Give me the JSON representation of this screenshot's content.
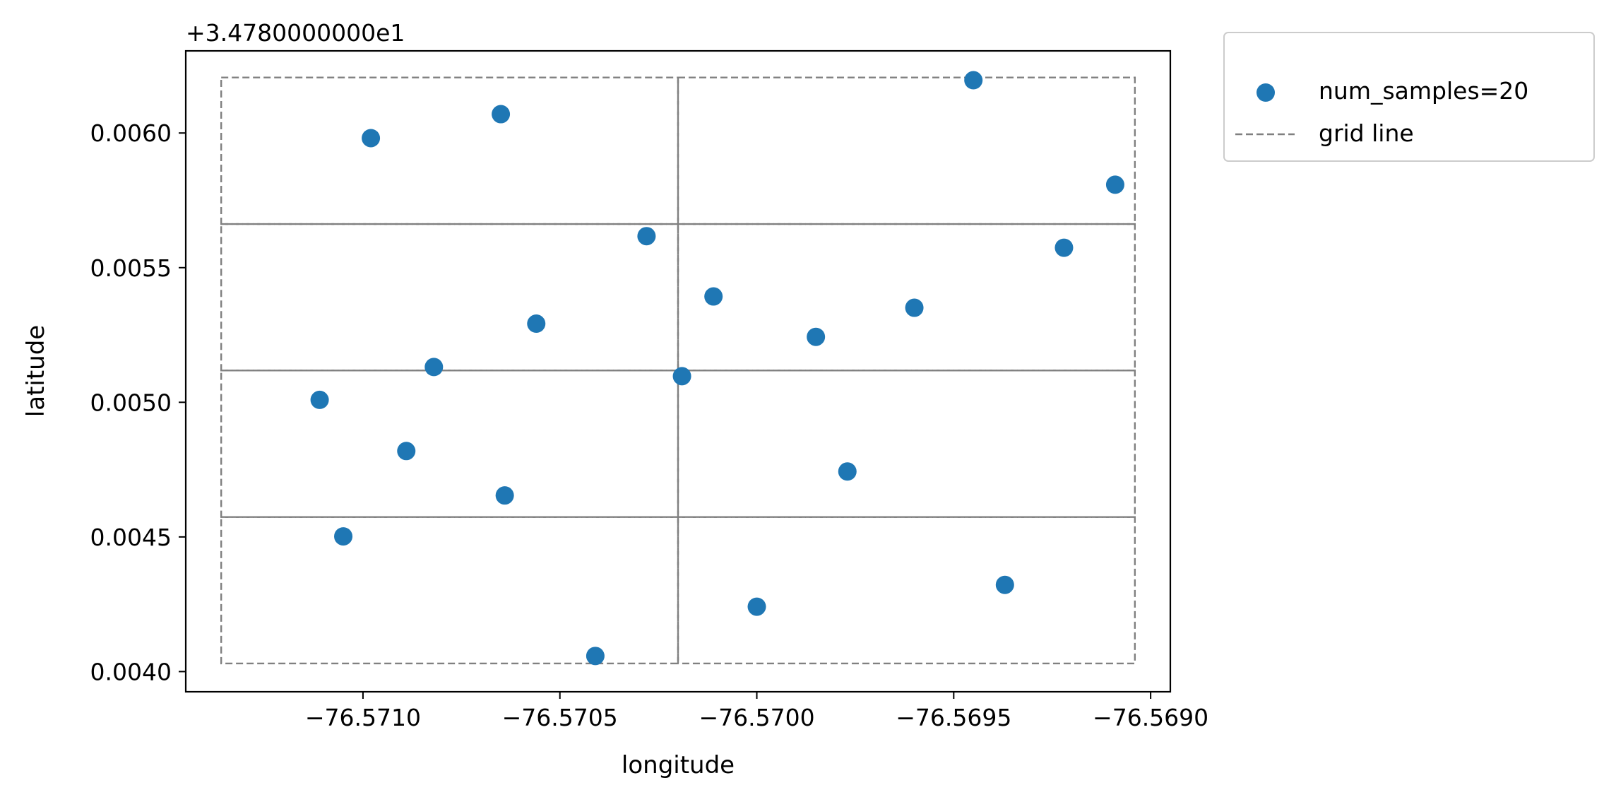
{
  "chart_data": {
    "type": "scatter",
    "xlabel": "longitude",
    "ylabel": "latitude",
    "y_offset_label": "+3.4780000000e1",
    "xlim": [
      -76.57145,
      -76.56895
    ],
    "ylim": [
      0.003925,
      0.006305
    ],
    "x_ticks": [
      -76.571,
      -76.5705,
      -76.57,
      -76.5695,
      -76.569
    ],
    "x_tick_labels": [
      "−76.5710",
      "−76.5705",
      "−76.5700",
      "−76.5695",
      "−76.5690"
    ],
    "y_ticks": [
      0.004,
      0.0045,
      0.005,
      0.0055,
      0.006
    ],
    "y_tick_labels": [
      "0.0040",
      "0.0045",
      "0.0050",
      "0.0055",
      "0.0060"
    ],
    "grid": false,
    "legend_position": "outside-top-right",
    "series": [
      {
        "name": "num_samples=20",
        "color": "#1f77b4",
        "marker": "circle",
        "points": [
          {
            "x": -76.57098,
            "y": 0.005981
          },
          {
            "x": -76.57065,
            "y": 0.00607
          },
          {
            "x": -76.56945,
            "y": 0.006196
          },
          {
            "x": -76.56909,
            "y": 0.005808
          },
          {
            "x": -76.57028,
            "y": 0.005617
          },
          {
            "x": -76.56922,
            "y": 0.005574
          },
          {
            "x": -76.57011,
            "y": 0.005393
          },
          {
            "x": -76.5696,
            "y": 0.005351
          },
          {
            "x": -76.57056,
            "y": 0.005292
          },
          {
            "x": -76.56985,
            "y": 0.005243
          },
          {
            "x": -76.57082,
            "y": 0.005131
          },
          {
            "x": -76.57019,
            "y": 0.005097
          },
          {
            "x": -76.57111,
            "y": 0.005009
          },
          {
            "x": -76.57089,
            "y": 0.004819
          },
          {
            "x": -76.56977,
            "y": 0.004743
          },
          {
            "x": -76.57064,
            "y": 0.004654
          },
          {
            "x": -76.57105,
            "y": 0.004502
          },
          {
            "x": -76.56937,
            "y": 0.004322
          },
          {
            "x": -76.57,
            "y": 0.004241
          },
          {
            "x": -76.57041,
            "y": 0.004058
          }
        ]
      }
    ],
    "grid_lines": {
      "name": "grid line",
      "color": "#808080",
      "style": "dashed",
      "cells": [
        {
          "x": [
            -76.57136,
            -76.5702
          ],
          "y": [
            0.00403,
            0.004574
          ]
        },
        {
          "x": [
            -76.57136,
            -76.5702
          ],
          "y": [
            0.004574,
            0.005118
          ]
        },
        {
          "x": [
            -76.57136,
            -76.5702
          ],
          "y": [
            0.005118,
            0.005662
          ]
        },
        {
          "x": [
            -76.57136,
            -76.5702
          ],
          "y": [
            0.005662,
            0.006206
          ]
        },
        {
          "x": [
            -76.5702,
            -76.56904
          ],
          "y": [
            0.00403,
            0.004574
          ]
        },
        {
          "x": [
            -76.5702,
            -76.56904
          ],
          "y": [
            0.004574,
            0.005118
          ]
        },
        {
          "x": [
            -76.5702,
            -76.56904
          ],
          "y": [
            0.005118,
            0.005662
          ]
        },
        {
          "x": [
            -76.5702,
            -76.56904
          ],
          "y": [
            0.005662,
            0.006206
          ]
        }
      ]
    }
  }
}
